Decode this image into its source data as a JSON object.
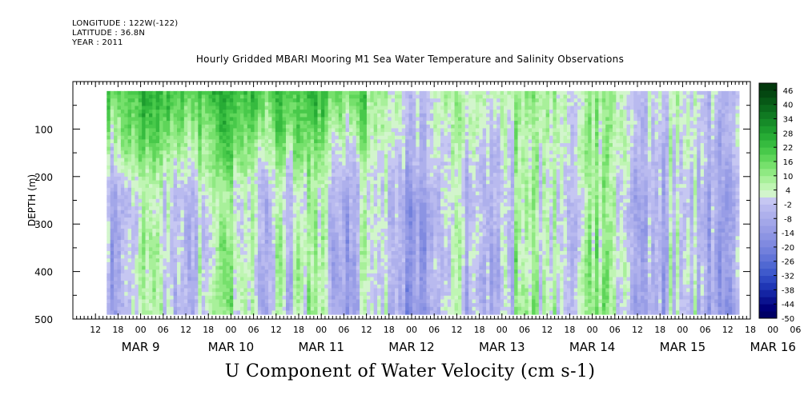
{
  "header": {
    "longitude": "LONGITUDE : 122W(-122)",
    "latitude": "LATITUDE : 36.8N",
    "year": "YEAR : 2011"
  },
  "title": "Hourly Gridded MBARI Mooring M1 Sea Water Temperature and Salinity Observations",
  "caption": "U Component of Water Velocity (cm s-1)",
  "chart_data": {
    "type": "heatmap",
    "title": "Hourly Gridded MBARI Mooring M1 Sea Water Temperature and Salinity Observations",
    "xlabel": "",
    "ylabel": "DEPTH (m)",
    "colorbar_label": "U Component of Water Velocity (cm s-1)",
    "x_hours_range": [
      -18,
      162
    ],
    "x_start_reference": "MAR 9 00",
    "y_range": [
      0,
      500
    ],
    "y_inverted": true,
    "y_ticks": [
      100,
      200,
      300,
      400,
      500
    ],
    "x_tick_labels": [
      "12",
      "18",
      "00",
      "06",
      "12",
      "18",
      "00",
      "06",
      "12",
      "18",
      "00",
      "06",
      "12",
      "18",
      "00",
      "06",
      "12",
      "18",
      "00",
      "06",
      "12",
      "18",
      "00",
      "06",
      "12",
      "18",
      "00",
      "06",
      "12",
      "18",
      "00",
      "06"
    ],
    "day_labels": [
      "MAR  9",
      "MAR 10",
      "MAR 11",
      "MAR 12",
      "MAR 13",
      "MAR 14",
      "MAR 15",
      "MAR 16"
    ],
    "data_extent": {
      "hours": [
        -9,
        159
      ],
      "depth": [
        20,
        490
      ]
    },
    "colorbar": {
      "tick_labels": [
        "46",
        "40",
        "34",
        "28",
        "22",
        "16",
        "10",
        "4",
        "-2",
        "-8",
        "-14",
        "-20",
        "-26",
        "-32",
        "-38",
        "-44",
        "-50"
      ],
      "levels": [
        -50,
        -47,
        -44,
        -41,
        -38,
        -35,
        -32,
        -29,
        -26,
        -23,
        -20,
        -17,
        -14,
        -11,
        -8,
        -5,
        -2,
        1,
        4,
        7,
        10,
        13,
        16,
        19,
        22,
        25,
        28,
        31,
        34,
        37,
        40,
        43,
        46,
        49
      ],
      "colors": [
        "#000066",
        "#00007a",
        "#0a128f",
        "#1424a3",
        "#1f36b5",
        "#2e48c2",
        "#3f5acc",
        "#5068d2",
        "#6274d8",
        "#7280dc",
        "#808ae0",
        "#8c94e3",
        "#989de6",
        "#a3a7e9",
        "#aeb0ec",
        "#b9baef",
        "#c6c7f2",
        "#d2f5cc",
        "#bff5b3",
        "#a8f09a",
        "#8fe982",
        "#76e06c",
        "#5ed559",
        "#48c94a",
        "#36bb3f",
        "#27ac35",
        "#1d9c2e",
        "#168b28",
        "#107a22",
        "#0b691c",
        "#075816",
        "#044711",
        "#02380c"
      ]
    },
    "series": [
      {
        "name": "U velocity",
        "description": "depth-time field, positive (green) near surface early, alternating negative (blue) columns at depth"
      }
    ]
  }
}
